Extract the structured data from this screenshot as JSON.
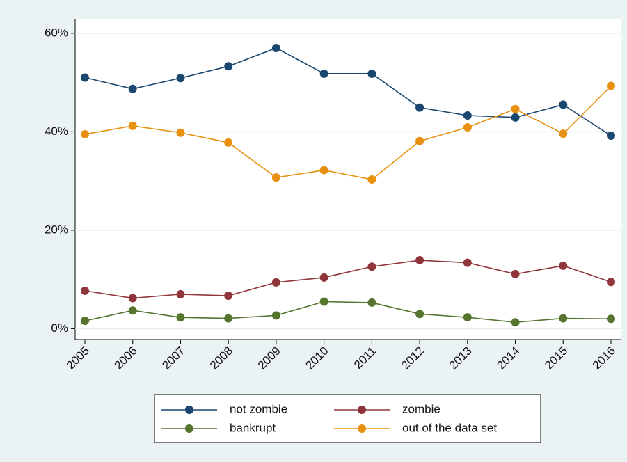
{
  "chart_data": {
    "type": "line",
    "categories": [
      "2005",
      "2006",
      "2007",
      "2008",
      "2009",
      "2010",
      "2011",
      "2012",
      "2013",
      "2014",
      "2015",
      "2016"
    ],
    "series": [
      {
        "name": "not zombie",
        "color": "#1a476f",
        "values": [
          51.0,
          48.7,
          50.9,
          53.3,
          57.0,
          51.8,
          51.8,
          44.9,
          43.3,
          42.9,
          45.5,
          39.2
        ]
      },
      {
        "name": "zombie",
        "color": "#90353b",
        "values": [
          7.7,
          6.2,
          7.0,
          6.7,
          9.4,
          10.4,
          12.6,
          13.9,
          13.4,
          11.1,
          12.8,
          9.5
        ]
      },
      {
        "name": "bankrupt",
        "color": "#55752f",
        "values": [
          1.6,
          3.7,
          2.3,
          2.1,
          2.7,
          5.5,
          5.3,
          3.0,
          2.3,
          1.3,
          2.1,
          2.0
        ]
      },
      {
        "name": "out of the data set",
        "color": "#e8900f",
        "values": [
          39.5,
          41.2,
          39.8,
          37.8,
          30.7,
          32.2,
          30.3,
          38.1,
          40.9,
          44.6,
          39.6,
          49.3
        ]
      }
    ],
    "ylim": [
      -2.2,
      62.8
    ],
    "yticks": [
      {
        "value": 0,
        "label": "0%"
      },
      {
        "value": 20,
        "label": "20%"
      },
      {
        "value": 40,
        "label": "40%"
      },
      {
        "value": 60,
        "label": "60%"
      }
    ],
    "grid": true
  }
}
